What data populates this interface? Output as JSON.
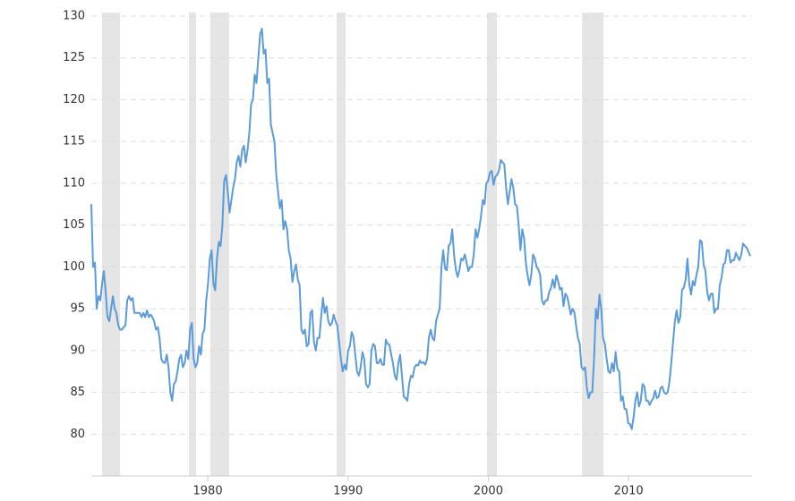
{
  "chart_data": {
    "type": "line",
    "xlim": [
      1971.7,
      2018.8
    ],
    "xticks": [
      1980,
      1990,
      2000,
      2010
    ],
    "ylim": [
      75,
      130
    ],
    "yticks": [
      80,
      85,
      90,
      95,
      100,
      105,
      110,
      115,
      120,
      125,
      130
    ],
    "grid": true,
    "shade_color": "#e5e5e5",
    "shaded_periods": [
      [
        1972.47,
        1973.75
      ],
      [
        1978.66,
        1979.17
      ],
      [
        1980.19,
        1981.53
      ],
      [
        1989.19,
        1989.83
      ],
      [
        1999.91,
        2000.61
      ],
      [
        2006.68,
        2008.21
      ]
    ],
    "x": [
      1971.7,
      1971.828,
      1971.956,
      1972.084,
      1972.212,
      1972.34,
      1972.468,
      1972.596,
      1972.724,
      1972.852,
      1972.98,
      1973.108,
      1973.236,
      1973.364,
      1973.492,
      1973.62,
      1973.748,
      1973.876,
      1974.004,
      1974.132,
      1974.26,
      1974.388,
      1974.516,
      1974.644,
      1974.772,
      1974.9,
      1975.028,
      1975.156,
      1975.284,
      1975.412,
      1975.54,
      1975.668,
      1975.796,
      1975.924,
      1976.052,
      1976.18,
      1976.308,
      1976.436,
      1976.564,
      1976.692,
      1976.82,
      1976.948,
      1977.076,
      1977.204,
      1977.332,
      1977.46,
      1977.588,
      1977.716,
      1977.844,
      1977.972,
      1978.1,
      1978.228,
      1978.356,
      1978.484,
      1978.612,
      1978.74,
      1978.868,
      1978.996,
      1979.124,
      1979.252,
      1979.38,
      1979.508,
      1979.636,
      1979.764,
      1979.892,
      1980.02,
      1980.148,
      1980.276,
      1980.404,
      1980.532,
      1980.66,
      1980.788,
      1980.916,
      1981.044,
      1981.172,
      1981.3,
      1981.428,
      1981.556,
      1981.684,
      1981.812,
      1981.94,
      1982.068,
      1982.196,
      1982.324,
      1982.452,
      1982.58,
      1982.708,
      1982.836,
      1982.964,
      1983.092,
      1983.22,
      1983.348,
      1983.476,
      1983.604,
      1983.732,
      1983.86,
      1983.988,
      1984.116,
      1984.244,
      1984.372,
      1984.5,
      1984.628,
      1984.756,
      1984.884,
      1985.012,
      1985.14,
      1985.268,
      1985.396,
      1985.524,
      1985.652,
      1985.78,
      1985.908,
      1986.036,
      1986.164,
      1986.292,
      1986.42,
      1986.548,
      1986.676,
      1986.804,
      1986.932,
      1987.06,
      1987.188,
      1987.316,
      1987.444,
      1987.572,
      1987.7,
      1987.828,
      1987.956,
      1988.084,
      1988.212,
      1988.34,
      1988.468,
      1988.596,
      1988.724,
      1988.852,
      1988.98,
      1989.108,
      1989.236,
      1989.364,
      1989.492,
      1989.62,
      1989.748,
      1989.876,
      1990.004,
      1990.132,
      1990.26,
      1990.388,
      1990.516,
      1990.644,
      1990.772,
      1990.9,
      1991.028,
      1991.156,
      1991.284,
      1991.412,
      1991.54,
      1991.668,
      1991.796,
      1991.924,
      1992.052,
      1992.18,
      1992.308,
      1992.436,
      1992.564,
      1992.692,
      1992.82,
      1992.948,
      1993.076,
      1993.204,
      1993.332,
      1993.46,
      1993.588,
      1993.716,
      1993.844,
      1993.972,
      1994.1,
      1994.228,
      1994.356,
      1994.484,
      1994.612,
      1994.74,
      1994.868,
      1994.996,
      1995.124,
      1995.252,
      1995.38,
      1995.508,
      1995.636,
      1995.764,
      1995.892,
      1996.02,
      1996.148,
      1996.276,
      1996.404,
      1996.532,
      1996.66,
      1996.788,
      1996.916,
      1997.044,
      1997.172,
      1997.3,
      1997.428,
      1997.556,
      1997.684,
      1997.812,
      1997.94,
      1998.068,
      1998.196,
      1998.324,
      1998.452,
      1998.58,
      1998.708,
      1998.836,
      1998.964,
      1999.092,
      1999.22,
      1999.348,
      1999.476,
      1999.604,
      1999.732,
      1999.86,
      1999.988,
      2000.116,
      2000.244,
      2000.372,
      2000.5,
      2000.628,
      2000.756,
      2000.884,
      2001.012,
      2001.14,
      2001.268,
      2001.396,
      2001.524,
      2001.652,
      2001.78,
      2001.908,
      2002.036,
      2002.164,
      2002.292,
      2002.42,
      2002.548,
      2002.676,
      2002.804,
      2002.932,
      2003.06,
      2003.188,
      2003.316,
      2003.444,
      2003.572,
      2003.7,
      2003.828,
      2003.956,
      2004.084,
      2004.212,
      2004.34,
      2004.468,
      2004.596,
      2004.724,
      2004.852,
      2004.98,
      2005.108,
      2005.236,
      2005.364,
      2005.492,
      2005.62,
      2005.748,
      2005.876,
      2006.004,
      2006.132,
      2006.26,
      2006.388,
      2006.516,
      2006.644,
      2006.772,
      2006.9,
      2007.028,
      2007.156,
      2007.284,
      2007.412,
      2007.54,
      2007.668,
      2007.796,
      2007.924,
      2008.052,
      2008.18,
      2008.308,
      2008.436,
      2008.564,
      2008.692,
      2008.82,
      2008.948,
      2009.076,
      2009.204,
      2009.332,
      2009.46,
      2009.588,
      2009.716,
      2009.844,
      2009.972,
      2010.1,
      2010.228,
      2010.356,
      2010.484,
      2010.612,
      2010.74,
      2010.868,
      2010.996,
      2011.124,
      2011.252,
      2011.38,
      2011.508,
      2011.636,
      2011.764,
      2011.892,
      2012.02,
      2012.148,
      2012.276,
      2012.404,
      2012.532,
      2012.66,
      2012.788,
      2012.916,
      2013.044,
      2013.172,
      2013.3,
      2013.428,
      2013.556,
      2013.684,
      2013.812,
      2013.94,
      2014.068,
      2014.196,
      2014.324,
      2014.452,
      2014.58,
      2014.708,
      2014.836,
      2014.964,
      2015.092,
      2015.22,
      2015.348,
      2015.476,
      2015.604,
      2015.732,
      2015.86,
      2015.988,
      2016.116,
      2016.244,
      2016.372,
      2016.5,
      2016.628,
      2016.756,
      2016.884,
      2017.012,
      2017.14,
      2017.268,
      2017.396,
      2017.524,
      2017.652,
      2017.78,
      2017.908,
      2018.036,
      2018.164,
      2018.292,
      2018.42,
      2018.548,
      2018.676
    ],
    "series": [
      {
        "color": "#5b9bd9",
        "values": [
          107.5,
          100,
          100.5,
          95,
          96.5,
          96,
          98,
          99.5,
          97,
          94,
          93.5,
          95,
          96.5,
          95,
          94.5,
          93,
          92.5,
          92.5,
          92.8,
          93,
          96,
          96.5,
          96,
          96.3,
          94.5,
          94.5,
          94.5,
          94.5,
          94,
          94.5,
          94,
          94.8,
          94,
          94.3,
          94,
          93.5,
          92.5,
          92.8,
          91.5,
          89,
          88.6,
          88.5,
          89.5,
          88,
          85,
          84,
          86,
          86.3,
          87.5,
          89,
          89.5,
          88,
          88.5,
          90,
          89,
          92.5,
          93.3,
          89,
          88,
          88.5,
          90.5,
          89.5,
          92,
          92.5,
          96,
          98,
          101,
          102,
          98,
          97.2,
          101,
          103,
          102.5,
          105,
          110.3,
          111,
          109,
          106.5,
          108,
          109.5,
          110.5,
          112.5,
          113.3,
          112,
          114,
          114.5,
          112.5,
          114,
          116,
          119.5,
          120,
          123,
          122,
          125,
          127.8,
          128.5,
          125.5,
          126,
          122,
          122.5,
          117,
          116,
          115,
          111,
          109,
          107,
          108,
          104.5,
          105.5,
          104.5,
          102,
          101,
          98.2,
          99.5,
          100.3,
          98.5,
          97.8,
          92.5,
          92,
          92.5,
          90.5,
          90.8,
          94.5,
          94.8,
          91,
          90,
          91.5,
          91.5,
          94,
          96.3,
          94.5,
          95.3,
          93.5,
          93,
          93.3,
          94.3,
          93.5,
          93,
          91,
          89,
          87.5,
          88.3,
          87.7,
          90,
          90.5,
          92.2,
          91.6,
          89.5,
          87.5,
          87,
          88,
          89.8,
          89,
          86,
          85.6,
          86,
          90,
          90.8,
          90.5,
          88.5,
          88.5,
          89,
          88.3,
          88.3,
          91.3,
          90.8,
          90.7,
          89.5,
          88.5,
          87,
          86.5,
          88.5,
          89.5,
          87,
          84.5,
          84.3,
          84,
          86,
          87,
          86.8,
          88,
          88.3,
          88.2,
          88.8,
          88.5,
          88.6,
          88.3,
          89,
          91.5,
          92.5,
          91.5,
          91.2,
          93.5,
          94.3,
          95,
          100,
          102,
          99.8,
          99.6,
          102.5,
          102.8,
          104.5,
          101.5,
          99.7,
          98.8,
          99.6,
          101,
          100.8,
          101.5,
          100.5,
          99.5,
          100,
          100,
          101.5,
          104.5,
          103.5,
          104.5,
          106,
          108,
          107.5,
          110,
          110.3,
          111.3,
          111.5,
          109.8,
          110.8,
          111,
          111.5,
          112.8,
          112.5,
          112.3,
          109.5,
          107.5,
          109,
          110.5,
          109.5,
          107.5,
          107.3,
          105,
          102,
          104.5,
          103.5,
          100.5,
          99,
          97.8,
          99,
          101.5,
          101,
          100,
          99.7,
          99,
          96,
          95.5,
          96,
          96,
          97,
          97.5,
          98.5,
          97.5,
          99,
          98.3,
          97.3,
          97.5,
          95.3,
          96.8,
          96.5,
          95.5,
          94.3,
          95,
          94.6,
          93,
          91.5,
          90.8,
          88,
          87.7,
          88,
          85.5,
          84.3,
          85,
          85,
          89,
          95,
          93.8,
          96.7,
          95,
          91.5,
          90.8,
          89,
          87.5,
          87.3,
          88.5,
          87.5,
          89.8,
          87.8,
          87.5,
          84,
          84.5,
          83,
          83,
          81.3,
          81.2,
          80.6,
          82,
          84,
          85,
          83.3,
          84,
          86,
          85.7,
          84,
          84,
          83.5,
          84,
          84.3,
          85.2,
          84.3,
          84.5,
          85.5,
          85.7,
          85,
          84.8,
          85,
          86.3,
          88.5,
          91,
          93.5,
          94.8,
          93.3,
          94,
          97.3,
          97.5,
          98.5,
          101,
          98,
          96.7,
          98.3,
          97.8,
          99,
          100,
          103.2,
          103,
          100.3,
          99.5,
          97,
          96,
          96.8,
          96.8,
          94.5,
          95,
          95,
          97.8,
          98.7,
          100.3,
          100.5,
          102,
          102,
          100.5,
          100.8,
          100.8,
          101.7,
          101.2,
          100.8,
          101.5,
          102.8,
          102.5,
          102.3,
          101.8,
          101.3
        ]
      }
    ]
  }
}
